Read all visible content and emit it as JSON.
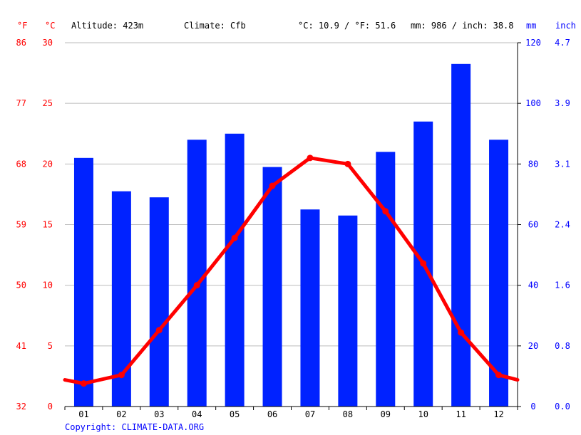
{
  "header": {
    "unit_f": "°F",
    "unit_c": "°C",
    "altitude": "Altitude: 423m",
    "climate": "Climate: Cfb",
    "temp_avg": "°C: 10.9 / °F: 51.6",
    "precip_total": "mm: 986 / inch: 38.8",
    "unit_mm": "mm",
    "unit_inch": "inch"
  },
  "copyright": "Copyright: CLIMATE-DATA.ORG",
  "colors": {
    "bars": "#0022ff",
    "line": "#ff0000",
    "left_axis": "#ff0000",
    "right_axis": "#0000ff",
    "grid": "#bbbbbb"
  },
  "chart_data": {
    "type": "bar",
    "categories": [
      "01",
      "02",
      "03",
      "04",
      "05",
      "06",
      "07",
      "08",
      "09",
      "10",
      "11",
      "12"
    ],
    "series": [
      {
        "type": "bar",
        "axis": "right",
        "values": [
          82,
          71,
          69,
          88,
          90,
          79,
          65,
          63,
          84,
          94,
          113,
          88
        ]
      },
      {
        "type": "line",
        "axis": "left",
        "values": [
          1.9,
          2.6,
          6.3,
          10.0,
          13.9,
          18.2,
          20.5,
          20.0,
          16.1,
          11.8,
          6.1,
          2.6
        ],
        "line_start": 2.2,
        "line_end": 2.2
      }
    ],
    "left_axis_c": {
      "ticks": [
        0,
        5,
        10,
        15,
        20,
        25,
        30
      ],
      "range": [
        0,
        30
      ]
    },
    "left_axis_f": {
      "ticks": [
        32,
        41,
        50,
        59,
        68,
        77,
        86
      ]
    },
    "right_axis_mm": {
      "ticks": [
        0,
        20,
        40,
        60,
        80,
        100,
        120
      ],
      "range": [
        0,
        120
      ]
    },
    "right_axis_inch": {
      "ticks": [
        "0.0",
        "0.8",
        "1.6",
        "2.4",
        "3.1",
        "3.9",
        "4.7"
      ]
    },
    "grid": true
  }
}
